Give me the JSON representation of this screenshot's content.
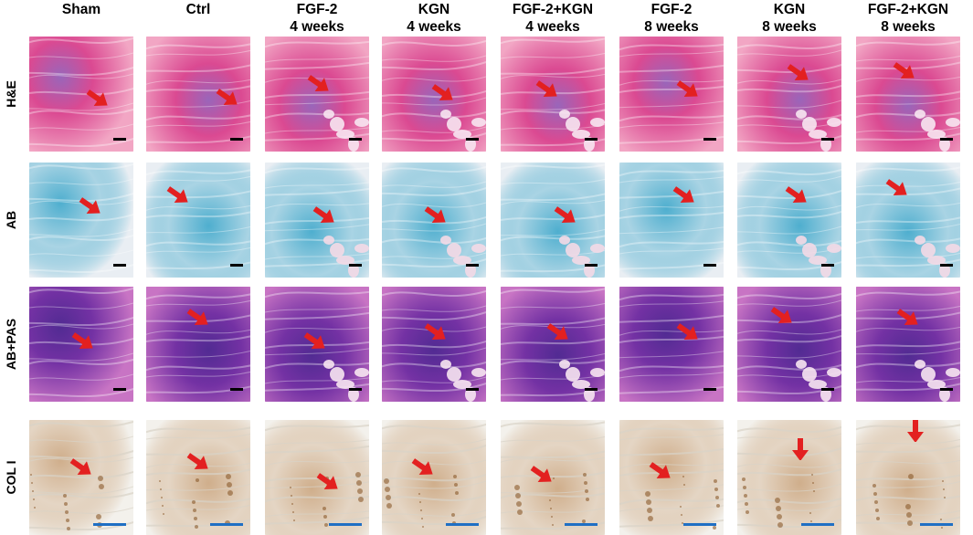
{
  "columns": [
    {
      "line1": "Sham",
      "line2": ""
    },
    {
      "line1": "Ctrl",
      "line2": ""
    },
    {
      "line1": "FGF-2",
      "line2": "4 weeks"
    },
    {
      "line1": "KGN",
      "line2": "4 weeks"
    },
    {
      "line1": "FGF-2+KGN",
      "line2": "4 weeks"
    },
    {
      "line1": "FGF-2",
      "line2": "8 weeks"
    },
    {
      "line1": "KGN",
      "line2": "8 weeks"
    },
    {
      "line1": "FGF-2+KGN",
      "line2": "8 weeks"
    }
  ],
  "rows": [
    {
      "label": "H&E",
      "stain": "he",
      "base": "#f2a6c4",
      "deep": "#d83f8c",
      "accent": "#8a5ab8",
      "scale_color": "#000000"
    },
    {
      "label": "AB",
      "stain": "ab",
      "base": "#e9eef3",
      "deep": "#33a3c8",
      "accent": "#1a5fa8",
      "scale_color": "#000000"
    },
    {
      "label": "AB+PAS",
      "stain": "abpas",
      "base": "#c874c4",
      "deep": "#6a2aa0",
      "accent": "#3d1e8a",
      "scale_color": "#000000"
    },
    {
      "label": "COL I",
      "stain": "col",
      "base": "#f3f1ec",
      "deep": "#c9a27a",
      "accent": "#8b5a2b",
      "scale_color": "#1f6fc4"
    }
  ],
  "arrow_color": "#e32020",
  "arrow_direction": "down-right",
  "last_row_arrow_direction": "down"
}
